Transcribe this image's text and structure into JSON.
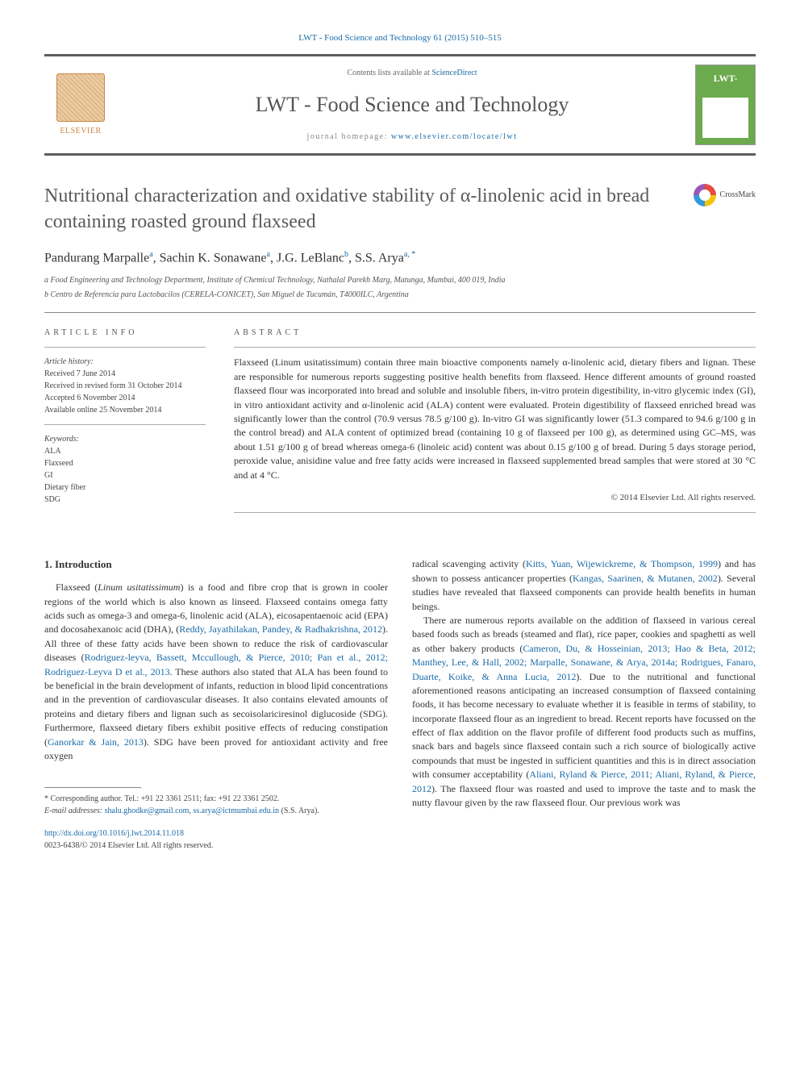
{
  "citation": "LWT - Food Science and Technology 61 (2015) 510–515",
  "header": {
    "contents_prefix": "Contents lists available at ",
    "contents_link": "ScienceDirect",
    "journal": "LWT - Food Science and Technology",
    "homepage_prefix": "journal homepage: ",
    "homepage_link": "www.elsevier.com/locate/lwt",
    "publisher": "ELSEVIER",
    "cover_label": "LWT-"
  },
  "article": {
    "title": "Nutritional characterization and oxidative stability of α-linolenic acid in bread containing roasted ground flaxseed",
    "crossmark": "CrossMark"
  },
  "authors": {
    "line_html": "Pandurang Marpalle <sup>a</sup>, Sachin K. Sonawane <sup>a</sup>, J.G. LeBlanc <sup>b</sup>, S.S. Arya <sup>a, *</sup>",
    "a1_name": "Pandurang Marpalle",
    "a1_sup": "a",
    "a2_name": ", Sachin K. Sonawane",
    "a2_sup": "a",
    "a3_name": ", J.G. LeBlanc",
    "a3_sup": "b",
    "a4_name": ", S.S. Arya",
    "a4_sup": "a, *"
  },
  "affiliations": {
    "a": "a Food Engineering and Technology Department, Institute of Chemical Technology, Nathalal Parekh Marg, Matunga, Mumbai, 400 019, India",
    "b": "b Centro de Referencia para Lactobacilos (CERELA-CONICET), San Miguel de Tucumán, T4000ILC, Argentina"
  },
  "article_info": {
    "label": "ARTICLE INFO",
    "history_label": "Article history:",
    "received": "Received 7 June 2014",
    "revised": "Received in revised form 31 October 2014",
    "accepted": "Accepted 6 November 2014",
    "online": "Available online 25 November 2014",
    "keywords_label": "Keywords:",
    "keywords": [
      "ALA",
      "Flaxseed",
      "GI",
      "Dietary fiber",
      "SDG"
    ]
  },
  "abstract": {
    "label": "ABSTRACT",
    "text": "Flaxseed (Linum usitatissimum) contain three main bioactive components namely α-linolenic acid, dietary fibers and lignan. These are responsible for numerous reports suggesting positive health benefits from flaxseed. Hence different amounts of ground roasted flaxseed flour was incorporated into bread and soluble and insoluble fibers, in-vitro protein digestibility, in-vitro glycemic index (GI), in vitro antioxidant activity and α-linolenic acid (ALA) content were evaluated. Protein digestibility of flaxseed enriched bread was significantly lower than the control (70.9 versus 78.5 g/100 g). In-vitro GI was significantly lower (51.3 compared to 94.6 g/100 g in the control bread) and ALA content of optimized bread (containing 10 g of flaxseed per 100 g), as determined using GC–MS, was about 1.51 g/100 g of bread whereas omega-6 (linoleic acid) content was about 0.15 g/100 g of bread. During 5 days storage period, peroxide value, anisidine value and free fatty acids were increased in flaxseed supplemented bread samples that were stored at 30 °C and at 4 °C.",
    "copyright": "© 2014 Elsevier Ltd. All rights reserved."
  },
  "body": {
    "heading1": "1. Introduction",
    "col1_p1a": "Flaxseed (",
    "col1_p1_species": "Linum usitatissimum",
    "col1_p1b": ") is a food and fibre crop that is grown in cooler regions of the world which is also known as linseed. Flaxseed contains omega fatty acids such as omega-3 and omega-6, linolenic acid (ALA), eicosapentaenoic acid (EPA) and docosahexanoic acid (DHA), (",
    "col1_cite1": "Reddy, Jayathilakan, Pandey, & Radhakrishna, 2012",
    "col1_p1c": "). All three of these fatty acids have been shown to reduce the risk of cardiovascular diseases (",
    "col1_cite2": "Rodriguez-leyva, Bassett, Mccullough, & Pierce, 2010; Pan et al., 2012; Rodriguez-Leyva D et al., 2013",
    "col1_p1d": ". These authors also stated that ALA has been found to be beneficial in the brain development of infants, reduction in blood lipid concentrations and in the prevention of cardiovascular diseases. It also contains elevated amounts of proteins and dietary fibers and lignan such as secoisolariciresinol diglucoside (SDG). Furthermore, flaxseed dietary fibers exhibit positive effects of reducing constipation (",
    "col1_cite3": "Ganorkar & Jain, 2013",
    "col1_p1e": "). SDG have been proved for antioxidant activity and free oxygen",
    "col2_p1a": "radical scavenging activity (",
    "col2_cite1": "Kitts, Yuan, Wijewickreme, & Thompson, 1999",
    "col2_p1b": ") and has shown to possess anticancer properties (",
    "col2_cite2": "Kangas, Saarinen, & Mutanen, 2002",
    "col2_p1c": "). Several studies have revealed that flaxseed components can provide health benefits in human beings.",
    "col2_p2a": "There are numerous reports available on the addition of flaxseed in various cereal based foods such as breads (steamed and flat), rice paper, cookies and spaghetti as well as other bakery products (",
    "col2_cite3": "Cameron, Du, & Hosseinian, 2013; Hao & Beta, 2012; Manthey, Lee, & Hall, 2002; Marpalle, Sonawane, & Arya, 2014a; Rodrigues, Fanaro, Duarte, Koike, & Anna Lucia, 2012",
    "col2_p2b": "). Due to the nutritional and functional aforementioned reasons anticipating an increased consumption of flaxseed containing foods, it has become necessary to evaluate whether it is feasible in terms of stability, to incorporate flaxseed flour as an ingredient to bread. Recent reports have focussed on the effect of flax addition on the flavor profile of different food products such as muffins, snack bars and bagels since flaxseed contain such a rich source of biologically active compounds that must be ingested in sufficient quantities and this is in direct association with consumer acceptability (",
    "col2_cite4": "Aliani, Ryland & Pierce, 2011; Aliani, Ryland, & Pierce, 2012",
    "col2_p2c": "). The flaxseed flour was roasted and used to improve the taste and to mask the nutty flavour given by the raw flaxseed flour. Our previous work was"
  },
  "footnotes": {
    "corr": "* Corresponding author. Tel.: +91 22 3361 2511; fax: +91 22 3361 2502.",
    "email_label": "E-mail addresses:",
    "email1": "shalu.ghodke@gmail.com",
    "email_sep": ", ",
    "email2": "ss.arya@ictmumbai.edu.in",
    "email_author": "(S.S. Arya)."
  },
  "doi": {
    "link": "http://dx.doi.org/10.1016/j.lwt.2014.11.018",
    "issn_line": "0023-6438/© 2014 Elsevier Ltd. All rights reserved."
  },
  "colors": {
    "link": "#1a6ba8",
    "text": "#333333",
    "rule": "#5c5c5c",
    "elsevier": "#cc8844",
    "cover": "#6baa4d"
  }
}
